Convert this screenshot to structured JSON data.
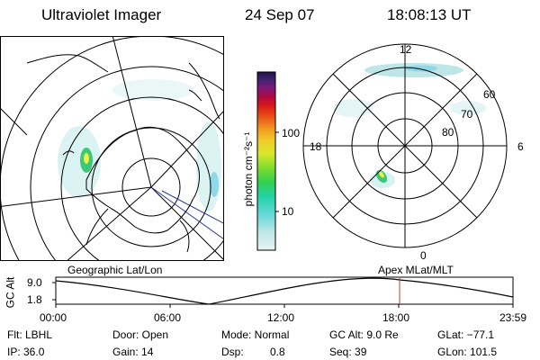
{
  "header": {
    "instrument": "Ultraviolet Imager",
    "date": "24 Sep 07",
    "time": "18:08:13 UT"
  },
  "colorbar": {
    "unit_label": "photon cm⁻²s⁻¹",
    "ticks": [
      "100",
      "10"
    ]
  },
  "mlt_dial": {
    "hour_labels": [
      "12",
      "18",
      "6",
      "0"
    ],
    "lat_labels": [
      "60",
      "70",
      "80"
    ]
  },
  "geo_panel": {
    "caption": "Geographic Lat/Lon"
  },
  "apex_panel": {
    "caption": "Apex  MLat/MLT"
  },
  "altitude_plot": {
    "ylabel": "GC Alt",
    "yticks": [
      "9.0",
      "1.8"
    ],
    "xticks": [
      "00:00",
      "06:00",
      "12:00",
      "18:00",
      "23:59"
    ]
  },
  "status": {
    "flt": "Flt: LBHL",
    "ip": "IP: 36.0",
    "door": "Door: Open",
    "gain": "Gain: 14",
    "mode": "Mode: Normal",
    "dsp_label": "Dsp:",
    "dsp_value": "0.8",
    "gc_alt": "GC Alt: 9.0 Re",
    "seq": "Seq: 39",
    "glat": "GLat: −77.1",
    "glon": "GLon: 101.5"
  },
  "colors": {
    "aurora_cyan": "#a8e6e6",
    "aurora_green": "#3cc878",
    "aurora_yellow": "#f0f040",
    "marker_red": "#c0392b",
    "track_blue": "#2a3aa0"
  }
}
